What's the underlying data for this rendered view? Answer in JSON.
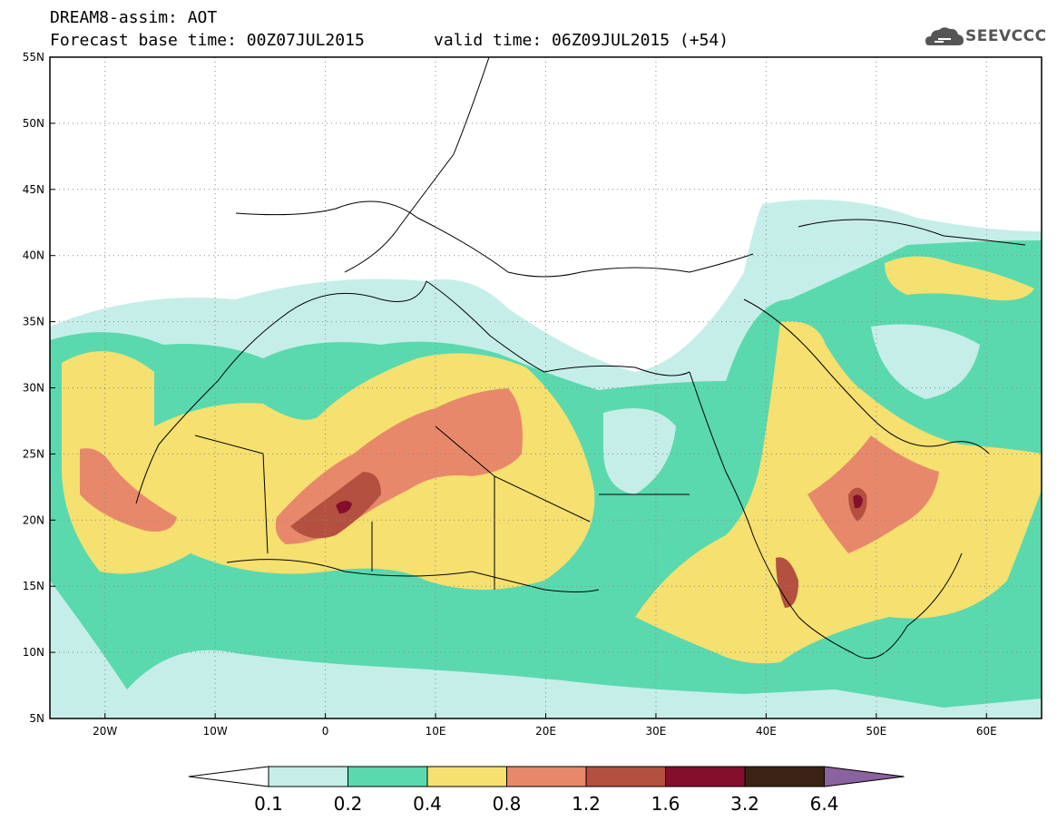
{
  "header": {
    "title": "DREAM8-assim: AOT",
    "base_time": "Forecast base time: 00Z07JUL2015",
    "valid_time": "valid time: 06Z09JUL2015 (+54)",
    "logo_text": "SEEVCCC"
  },
  "map": {
    "lat_labels": [
      "55N",
      "50N",
      "45N",
      "40N",
      "35N",
      "30N",
      "25N",
      "20N",
      "15N",
      "10N",
      "5N"
    ],
    "lon_labels": [
      "20W",
      "10W",
      "0",
      "10E",
      "20E",
      "30E",
      "40E",
      "50E",
      "60E"
    ],
    "lat_range": [
      5,
      55
    ],
    "lon_range": [
      -25,
      65
    ],
    "variable": "AOT"
  },
  "colorbar": {
    "colors": [
      "#ffffff",
      "#c6eee8",
      "#5ad9ae",
      "#f5e070",
      "#e8886a",
      "#b4503f",
      "#840f2c",
      "#3b2214",
      "#8a62a0"
    ],
    "labels": [
      "0.1",
      "0.2",
      "0.4",
      "0.8",
      "1.2",
      "1.6",
      "3.2",
      "6.4"
    ]
  }
}
